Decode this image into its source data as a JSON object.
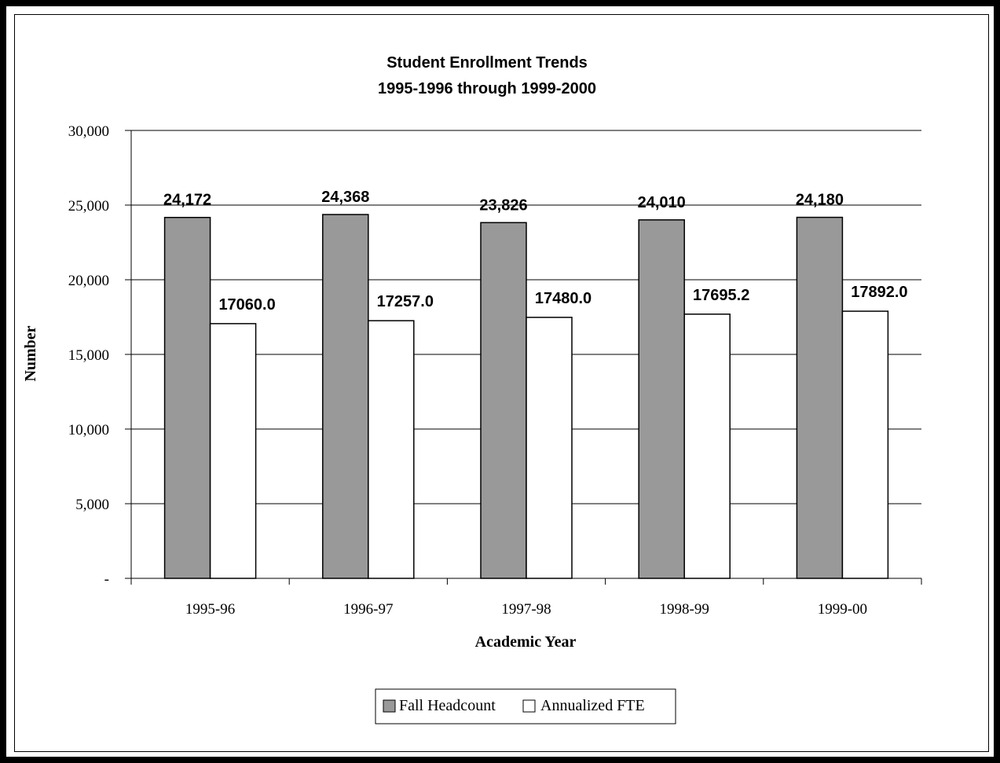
{
  "chart_data": {
    "type": "bar",
    "title": "Student Enrollment Trends",
    "subtitle": "1995-1996 through 1999-2000",
    "xlabel": "Academic Year",
    "ylabel": "Number",
    "categories": [
      "1995-96",
      "1996-97",
      "1997-98",
      "1998-99",
      "1999-00"
    ],
    "ylim": [
      0,
      30000
    ],
    "yticks": [
      0,
      5000,
      10000,
      15000,
      20000,
      25000,
      30000
    ],
    "ytick_labels": [
      "-",
      "5,000",
      "10,000",
      "15,000",
      "20,000",
      "25,000",
      "30,000"
    ],
    "grid": true,
    "legend_position": "bottom",
    "series": [
      {
        "name": "Fall Headcount",
        "color": "#999999",
        "values": [
          24172,
          24368,
          23826,
          24010,
          24180
        ],
        "labels": [
          "24,172",
          "24,368",
          "23,826",
          "24,010",
          "24,180"
        ]
      },
      {
        "name": "Annualized FTE",
        "color": "#ffffff",
        "values": [
          17060.0,
          17257.0,
          17480.0,
          17695.2,
          17892.0
        ],
        "labels": [
          "17060.0",
          "17257.0",
          "17480.0",
          "17695.2",
          "17892.0"
        ]
      }
    ]
  }
}
